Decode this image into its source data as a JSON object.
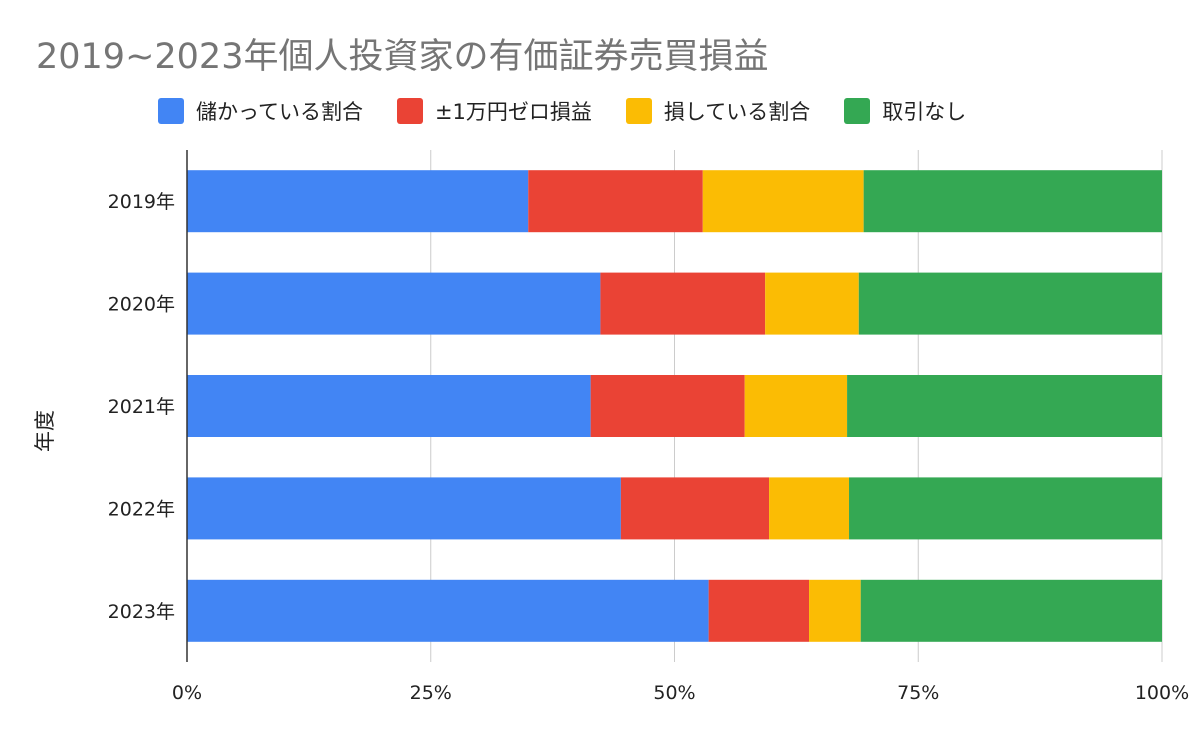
{
  "chart_data": {
    "type": "bar",
    "orientation": "horizontal",
    "stacked": "percent",
    "title": "2019~2023年個人投資家の有価証券売買損益",
    "ylabel": "年度",
    "xlabel": "",
    "categories": [
      "2019年",
      "2020年",
      "2021年",
      "2022年",
      "2023年"
    ],
    "series": [
      {
        "name": "儲かっている割合",
        "color": "#4285F4",
        "values": [
          35.0,
          42.4,
          41.4,
          44.5,
          53.5
        ]
      },
      {
        "name": "±1万円ゼロ損益",
        "color": "#EA4335",
        "values": [
          17.9,
          16.9,
          15.8,
          15.2,
          10.3
        ]
      },
      {
        "name": "損している割合",
        "color": "#FBBC04",
        "values": [
          16.5,
          9.6,
          10.5,
          8.2,
          5.3
        ]
      },
      {
        "name": "取引なし",
        "color": "#34A853",
        "values": [
          30.6,
          31.1,
          32.3,
          32.1,
          30.9
        ]
      }
    ],
    "xlim": [
      0,
      100
    ],
    "xticks": [
      "0%",
      "25%",
      "50%",
      "75%",
      "100%"
    ],
    "grid": true,
    "legend_position": "top"
  }
}
